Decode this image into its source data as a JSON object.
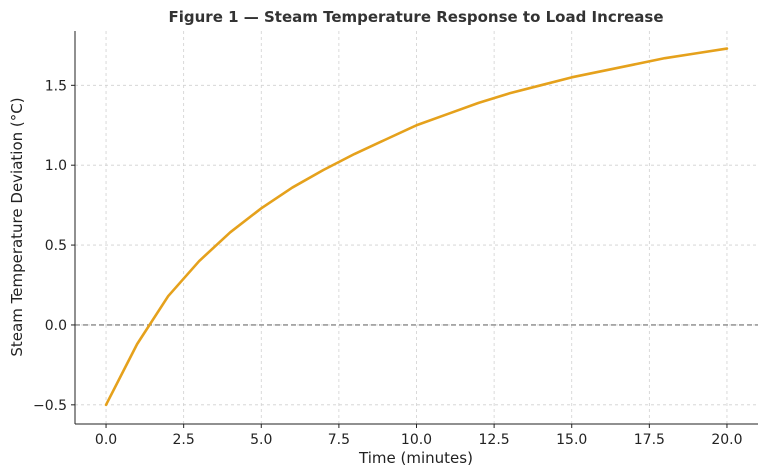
{
  "chart_data": {
    "type": "line",
    "title": "Figure 1 — Steam Temperature Response to Load Increase",
    "xlabel": "Time (minutes)",
    "ylabel": "Steam Temperature Deviation (°C)",
    "xlim": [
      -1.0,
      21.0
    ],
    "ylim": [
      -0.62,
      1.84
    ],
    "xticks": [
      0.0,
      2.5,
      5.0,
      7.5,
      10.0,
      12.5,
      15.0,
      17.5,
      20.0
    ],
    "xtick_labels": [
      "0.0",
      "2.5",
      "5.0",
      "7.5",
      "10.0",
      "12.5",
      "15.0",
      "17.5",
      "20.0"
    ],
    "yticks": [
      -0.5,
      0.0,
      0.5,
      1.0,
      1.5
    ],
    "ytick_labels": [
      "−0.5",
      "0.0",
      "0.5",
      "1.0",
      "1.5"
    ],
    "grid": true,
    "reference_line": {
      "y": 0.0,
      "style": "dashed",
      "color": "#888888"
    },
    "series": [
      {
        "color": "#E5A11C",
        "x": [
          0,
          1,
          2,
          3,
          4,
          5,
          6,
          7,
          8,
          9,
          10,
          11,
          12,
          13,
          14,
          15,
          16,
          17,
          18,
          19,
          20
        ],
        "y": [
          -0.5,
          -0.12,
          0.18,
          0.4,
          0.58,
          0.73,
          0.86,
          0.97,
          1.07,
          1.16,
          1.25,
          1.32,
          1.39,
          1.45,
          1.5,
          1.55,
          1.59,
          1.63,
          1.67,
          1.7,
          1.73
        ]
      }
    ]
  }
}
